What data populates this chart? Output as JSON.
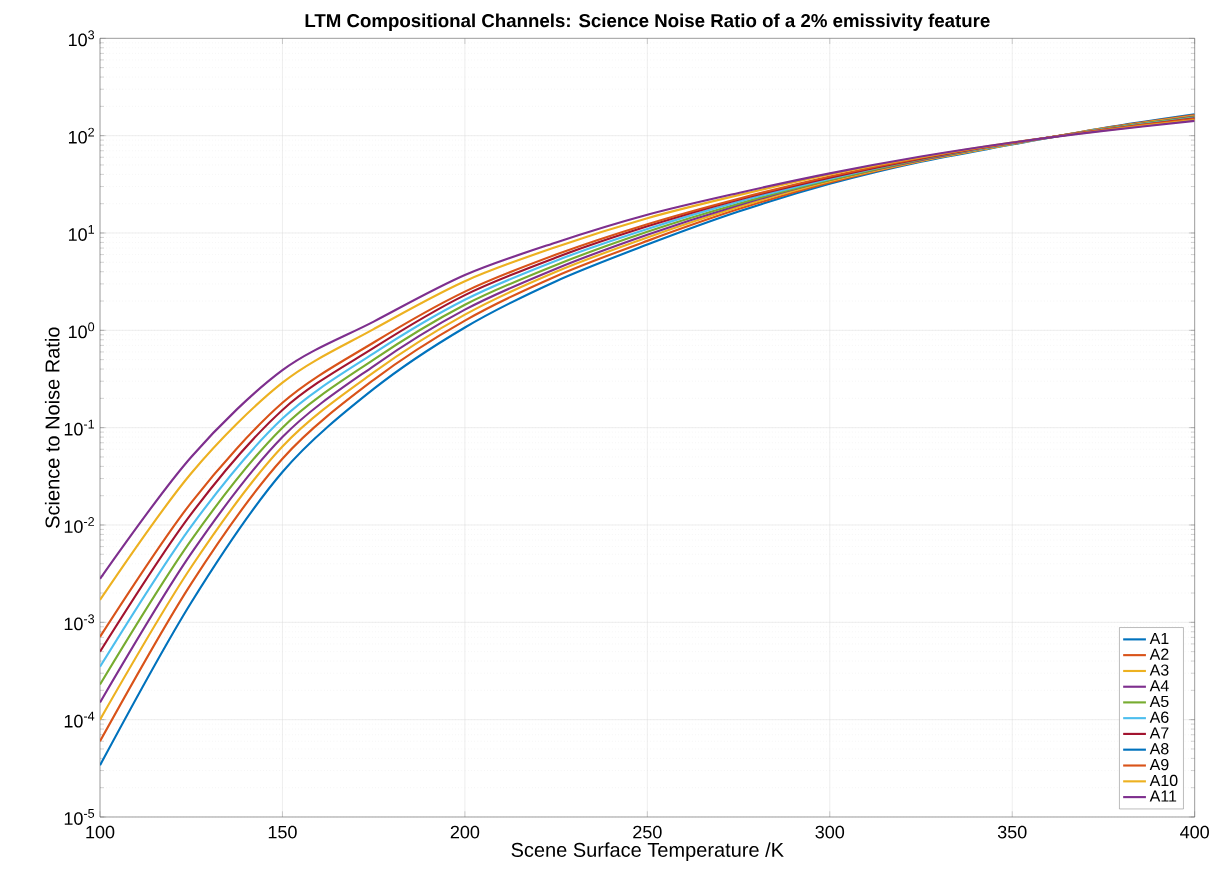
{
  "chart_data": {
    "type": "line",
    "title": "LTM Compositional Channels: Science Noise Ratio of a 2% emissivity feature",
    "xlabel": "Scene Surface Temperature /K",
    "ylabel": "Science to Noise Ratio",
    "x": [
      100,
      125,
      150,
      175,
      200,
      225,
      250,
      275,
      300,
      325,
      350,
      375,
      400
    ],
    "series": [
      {
        "name": "A1",
        "color": "#0072bd",
        "values": [
          3.4e-05,
          0.0016,
          0.035,
          0.25,
          1.07,
          3.2,
          7.6,
          16.6,
          32,
          54,
          81,
          120,
          166
        ]
      },
      {
        "name": "A2",
        "color": "#d95319",
        "values": [
          6e-05,
          0.0025,
          0.048,
          0.31,
          1.26,
          3.6,
          8.3,
          17.6,
          33,
          55,
          82,
          119,
          163
        ]
      },
      {
        "name": "A3",
        "color": "#edb120",
        "values": [
          0.0001,
          0.0037,
          0.064,
          0.37,
          1.45,
          4.0,
          9.0,
          18.5,
          34,
          55,
          82,
          118,
          160
        ]
      },
      {
        "name": "A4",
        "color": "#7e2f8e",
        "values": [
          0.00015,
          0.0051,
          0.08,
          0.43,
          1.63,
          4.3,
          9.6,
          19.3,
          35,
          56,
          83,
          117,
          157
        ]
      },
      {
        "name": "A5",
        "color": "#77ac30",
        "values": [
          0.00023,
          0.007,
          0.1,
          0.5,
          1.83,
          4.7,
          10.3,
          20,
          35,
          57,
          83,
          117,
          155
        ]
      },
      {
        "name": "A6",
        "color": "#4dbeee",
        "values": [
          0.00035,
          0.0097,
          0.124,
          0.58,
          2.06,
          5.2,
          11.0,
          21,
          36,
          58,
          83,
          116,
          153
        ]
      },
      {
        "name": "A7",
        "color": "#a2142f",
        "values": [
          0.0005,
          0.013,
          0.152,
          0.66,
          2.3,
          5.6,
          11.7,
          22,
          37,
          58,
          84,
          115,
          151
        ]
      },
      {
        "name": "A8",
        "color": "#0072bd",
        "values": [
          null,
          null,
          null,
          null,
          null,
          null,
          null,
          null,
          null,
          null,
          null,
          null,
          null
        ]
      },
      {
        "name": "A9",
        "color": "#d95319",
        "values": [
          0.00071,
          0.017,
          0.18,
          0.75,
          2.5,
          6.0,
          12.3,
          22.5,
          38,
          59,
          84,
          115,
          149
        ]
      },
      {
        "name": "A10",
        "color": "#edb120",
        "values": [
          0.0017,
          0.034,
          0.29,
          1.03,
          3.2,
          7.2,
          14.2,
          24.5,
          40,
          60,
          85,
          113,
          145
        ]
      },
      {
        "name": "A11",
        "color": "#7e2f8e",
        "values": [
          0.0028,
          0.05,
          0.39,
          1.23,
          3.7,
          8.0,
          15.4,
          25.8,
          41,
          61,
          85,
          112,
          142
        ]
      }
    ],
    "xlim": [
      100,
      400
    ],
    "xticks": [
      100,
      150,
      200,
      250,
      300,
      350,
      400
    ],
    "ylim": [
      1e-05,
      1000
    ],
    "yticks": [
      {
        "value": 1e-05,
        "label": "10$^{-5}$"
      },
      {
        "value": 0.0001,
        "label": "10$^{-4}$"
      },
      {
        "value": 0.001,
        "label": "10$^{-3}$"
      },
      {
        "value": 0.01,
        "label": "10$^{-2}$"
      },
      {
        "value": 0.1,
        "label": "10$^{-1}$"
      },
      {
        "value": 1,
        "label": "10$^{0}$"
      },
      {
        "value": 10,
        "label": "10$^{1}$"
      },
      {
        "value": 100,
        "label": "10$^{2}$"
      },
      {
        "value": 1000,
        "label": "10$^{3}$"
      }
    ],
    "log": "y",
    "grid": true,
    "legend": "bottom right",
    "marker": "none",
    "line_style": "solid"
  }
}
